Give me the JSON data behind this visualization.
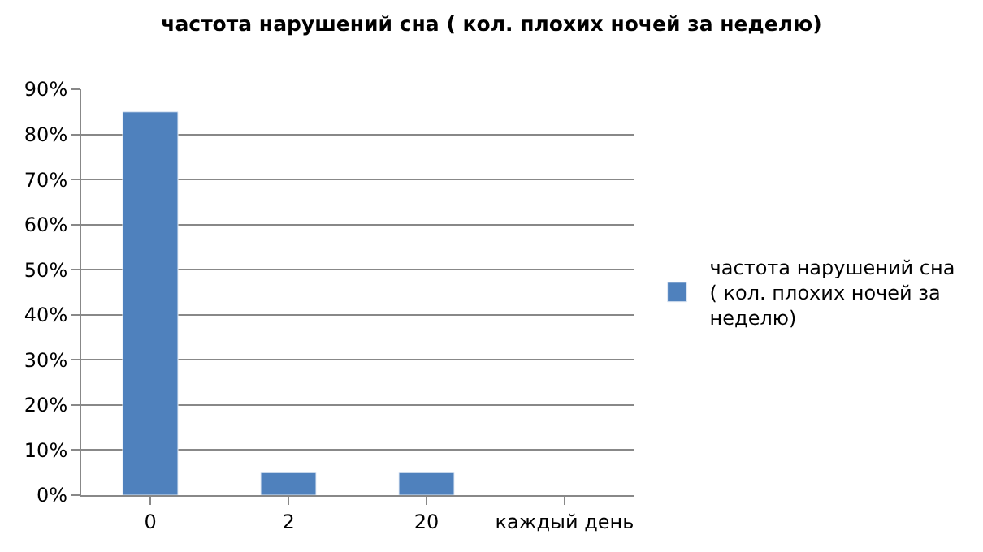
{
  "chart_data": {
    "type": "bar",
    "title": "частота нарушений сна ( кол. плохих ночей за неделю)",
    "categories": [
      "0",
      "2",
      "20",
      "каждый день"
    ],
    "series": [
      {
        "name": "частота нарушений сна ( кол. плохих ночей за неделю)",
        "color": "#4f81bd",
        "values": [
          85,
          5,
          5,
          null
        ]
      }
    ],
    "ylim": [
      0,
      90
    ],
    "yticks": [
      {
        "value": 0,
        "label": "0%"
      },
      {
        "value": 10,
        "label": "10%"
      },
      {
        "value": 20,
        "label": "20%"
      },
      {
        "value": 30,
        "label": "30%"
      },
      {
        "value": 40,
        "label": "40%"
      },
      {
        "value": 50,
        "label": "50%"
      },
      {
        "value": 60,
        "label": "60%"
      },
      {
        "value": 70,
        "label": "70%"
      },
      {
        "value": 80,
        "label": "80%"
      },
      {
        "value": 90,
        "label": "90%"
      }
    ],
    "grid": "y",
    "legend": "right"
  }
}
